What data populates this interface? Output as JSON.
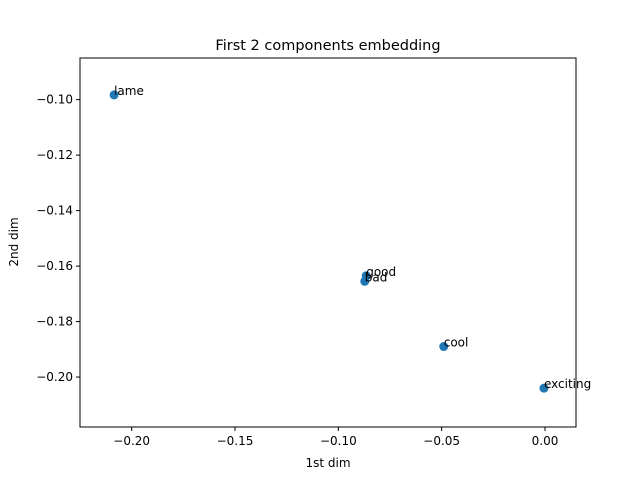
{
  "chart_data": {
    "type": "scatter",
    "title": "First 2 components embedding",
    "xlabel": "1st dim",
    "ylabel": "2nd dim",
    "xlim": [
      -0.225,
      0.015
    ],
    "ylim": [
      -0.218,
      -0.085
    ],
    "grid": false,
    "marker_color": "#1f77b4",
    "xticks": [
      {
        "value": -0.2,
        "label": "−0.20"
      },
      {
        "value": -0.15,
        "label": "−0.15"
      },
      {
        "value": -0.1,
        "label": "−0.10"
      },
      {
        "value": -0.05,
        "label": "−0.05"
      },
      {
        "value": 0.0,
        "label": "0.00"
      }
    ],
    "yticks": [
      {
        "value": -0.1,
        "label": "−0.10"
      },
      {
        "value": -0.12,
        "label": "−0.12"
      },
      {
        "value": -0.14,
        "label": "−0.14"
      },
      {
        "value": -0.16,
        "label": "−0.16"
      },
      {
        "value": -0.18,
        "label": "−0.18"
      },
      {
        "value": -0.2,
        "label": "−0.20"
      }
    ],
    "points": [
      {
        "label": "lame",
        "x": -0.2085,
        "y": -0.0983
      },
      {
        "label": "good",
        "x": -0.0865,
        "y": -0.1635
      },
      {
        "label": "bad",
        "x": -0.0872,
        "y": -0.1655
      },
      {
        "label": "cool",
        "x": -0.049,
        "y": -0.189
      },
      {
        "label": "exciting",
        "x": -0.0005,
        "y": -0.204
      }
    ]
  }
}
